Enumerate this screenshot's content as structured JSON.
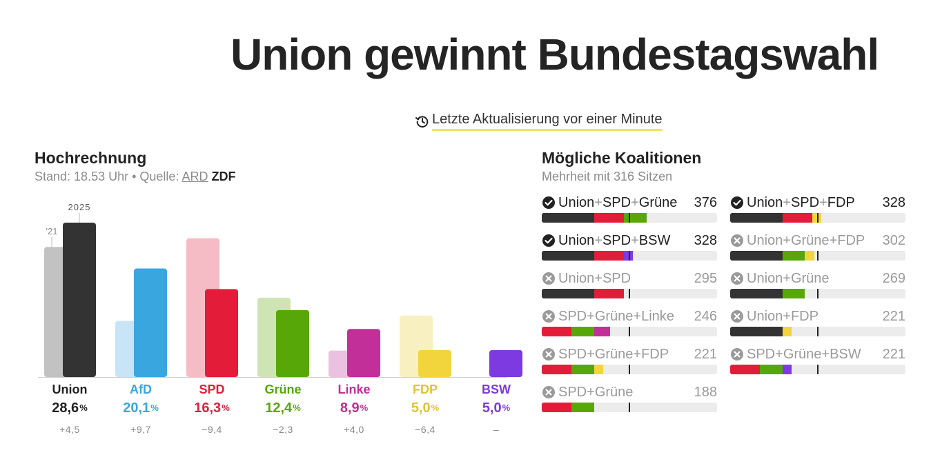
{
  "headline": "Union gewinnt Bundestagswahl",
  "update": {
    "text": "Letzte Aktualisierung vor einer Minute",
    "icon": "history-clock-icon"
  },
  "projection": {
    "title": "Hochrechnung",
    "subtitle_prefix": "Stand: 18.53 Uhr • Quelle:",
    "source_ard": "ARD",
    "source_zdf": "ZDF"
  },
  "chart_data": {
    "type": "bar",
    "categories": [
      "Union",
      "AfD",
      "SPD",
      "Grüne",
      "Linke",
      "FDP",
      "BSW"
    ],
    "series": [
      {
        "name": "'21",
        "values": [
          24.1,
          10.4,
          25.7,
          14.7,
          4.9,
          11.4,
          null
        ]
      },
      {
        "name": "2025",
        "values": [
          28.6,
          20.1,
          16.3,
          12.4,
          8.9,
          5.0,
          5.0
        ]
      }
    ],
    "value_labels": [
      "28,6",
      "20,1",
      "16,3",
      "12,4",
      "8,9",
      "5,0",
      "5,0"
    ],
    "change_labels": [
      "+4,5",
      "+9,7",
      "−9,4",
      "−2,3",
      "+4,0",
      "−6,4",
      "–"
    ],
    "percent_symbol": "%",
    "colors_2025": [
      "#333333",
      "#3aa6e0",
      "#e31d39",
      "#58a708",
      "#c22f98",
      "#f2d53c",
      "#7d3ae0"
    ],
    "colors_2021": [
      "#c2c2c2",
      "#c8e4f7",
      "#f5bcc5",
      "#cfe4b4",
      "#ebc1e0",
      "#f9f0c2",
      null
    ],
    "text_colors": [
      "#222222",
      "#3aa6e0",
      "#e31d39",
      "#58a708",
      "#c22f98",
      "#e0c431",
      "#7d3ae0"
    ],
    "ylim": [
      0,
      30
    ]
  },
  "coalitions": {
    "title": "Mögliche Koalitionen",
    "subtitle": "Mehrheit mit 316 Sitzen",
    "majority_seats": 316,
    "total_seats": 630,
    "party_colors": {
      "Union": "#333333",
      "SPD": "#e31d39",
      "Grüne": "#58a708",
      "FDP": "#f2d53c",
      "BSW": "#7d3ae0",
      "Linke": "#c22f98"
    },
    "items": [
      {
        "name": "Union+SPD+Grüne",
        "seats": "376",
        "possible": true,
        "parties": [
          {
            "p": "Union",
            "s": 188
          },
          {
            "p": "SPD",
            "s": 107
          },
          {
            "p": "Grüne",
            "s": 81
          }
        ]
      },
      {
        "name": "Union+SPD+FDP",
        "seats": "328",
        "possible": true,
        "parties": [
          {
            "p": "Union",
            "s": 188
          },
          {
            "p": "SPD",
            "s": 107
          },
          {
            "p": "FDP",
            "s": 33
          }
        ]
      },
      {
        "name": "Union+SPD+BSW",
        "seats": "328",
        "possible": true,
        "parties": [
          {
            "p": "Union",
            "s": 188
          },
          {
            "p": "SPD",
            "s": 107
          },
          {
            "p": "BSW",
            "s": 33
          }
        ]
      },
      {
        "name": "Union+Grüne+FDP",
        "seats": "302",
        "possible": false,
        "parties": [
          {
            "p": "Union",
            "s": 188
          },
          {
            "p": "Grüne",
            "s": 81
          },
          {
            "p": "FDP",
            "s": 33
          }
        ]
      },
      {
        "name": "Union+SPD",
        "seats": "295",
        "possible": false,
        "parties": [
          {
            "p": "Union",
            "s": 188
          },
          {
            "p": "SPD",
            "s": 107
          }
        ]
      },
      {
        "name": "Union+Grüne",
        "seats": "269",
        "possible": false,
        "parties": [
          {
            "p": "Union",
            "s": 188
          },
          {
            "p": "Grüne",
            "s": 81
          }
        ]
      },
      {
        "name": "SPD+Grüne+Linke",
        "seats": "246",
        "possible": false,
        "parties": [
          {
            "p": "SPD",
            "s": 107
          },
          {
            "p": "Grüne",
            "s": 81
          },
          {
            "p": "Linke",
            "s": 58
          }
        ]
      },
      {
        "name": "Union+FDP",
        "seats": "221",
        "possible": false,
        "parties": [
          {
            "p": "Union",
            "s": 188
          },
          {
            "p": "FDP",
            "s": 33
          }
        ]
      },
      {
        "name": "SPD+Grüne+FDP",
        "seats": "221",
        "possible": false,
        "parties": [
          {
            "p": "SPD",
            "s": 107
          },
          {
            "p": "Grüne",
            "s": 81
          },
          {
            "p": "FDP",
            "s": 33
          }
        ]
      },
      {
        "name": "SPD+Grüne+BSW",
        "seats": "221",
        "possible": false,
        "parties": [
          {
            "p": "SPD",
            "s": 107
          },
          {
            "p": "Grüne",
            "s": 81
          },
          {
            "p": "BSW",
            "s": 33
          }
        ]
      },
      {
        "name": "SPD+Grüne",
        "seats": "188",
        "possible": false,
        "parties": [
          {
            "p": "SPD",
            "s": 107
          },
          {
            "p": "Grüne",
            "s": 81
          }
        ]
      }
    ]
  }
}
